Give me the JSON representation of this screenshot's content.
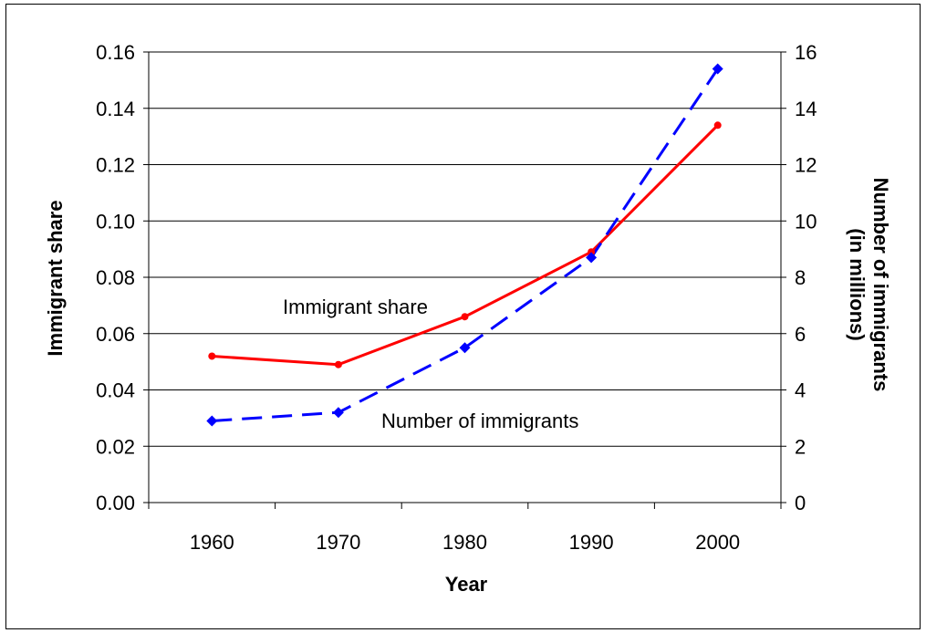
{
  "chart_data": {
    "type": "line",
    "categories": [
      "1960",
      "1970",
      "1980",
      "1990",
      "2000"
    ],
    "xlabel": "Year",
    "ylabel": "Immigrant share",
    "y2label_line1": "Number of immigrants",
    "y2label_line2": "(in millions)",
    "ylim": [
      0,
      0.16
    ],
    "y2lim": [
      0,
      16
    ],
    "yticks": [
      "0.00",
      "0.02",
      "0.04",
      "0.06",
      "0.08",
      "0.10",
      "0.12",
      "0.14",
      "0.16"
    ],
    "y2ticks": [
      "0",
      "2",
      "4",
      "6",
      "8",
      "10",
      "12",
      "14",
      "16"
    ],
    "grid": true,
    "series": [
      {
        "name": "Immigrant share",
        "axis": "left",
        "values": [
          0.052,
          0.049,
          0.066,
          0.089,
          0.134
        ],
        "color": "#ff0000",
        "style": "solid",
        "marker": "circle"
      },
      {
        "name": "Number of immigrants",
        "axis": "right",
        "values": [
          2.9,
          3.2,
          5.5,
          8.7,
          15.4
        ],
        "color": "#0000ff",
        "style": "dashed",
        "marker": "diamond"
      }
    ],
    "annotations": [
      "Immigrant share",
      "Number of immigrants"
    ]
  }
}
